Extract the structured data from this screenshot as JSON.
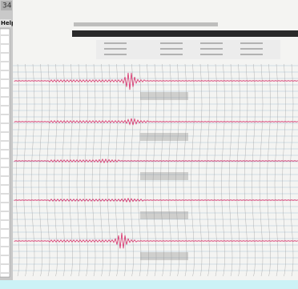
{
  "window": {
    "counter": "34",
    "menu": "Help"
  }
}
